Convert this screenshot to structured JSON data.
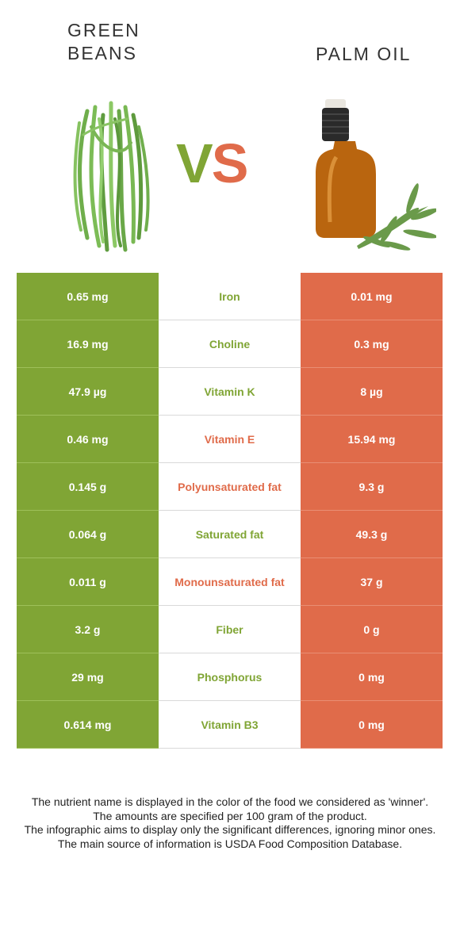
{
  "foods": {
    "left": {
      "name": "GREEN\nBEANS",
      "color": "#80a535",
      "image_icon": "green-beans-image"
    },
    "right": {
      "name": "PALM OIL",
      "color": "#e06b4a",
      "image_icon": "palm-oil-bottle-image"
    }
  },
  "vs": {
    "v": "V",
    "s": "S"
  },
  "rows": [
    {
      "nutrient": "Iron",
      "left": "0.65 mg",
      "right": "0.01 mg",
      "winner": "left"
    },
    {
      "nutrient": "Choline",
      "left": "16.9 mg",
      "right": "0.3 mg",
      "winner": "left"
    },
    {
      "nutrient": "Vitamin K",
      "left": "47.9 µg",
      "right": "8 µg",
      "winner": "left"
    },
    {
      "nutrient": "Vitamin E",
      "left": "0.46 mg",
      "right": "15.94 mg",
      "winner": "right"
    },
    {
      "nutrient": "Polyunsaturated fat",
      "left": "0.145 g",
      "right": "9.3 g",
      "winner": "right"
    },
    {
      "nutrient": "Saturated fat",
      "left": "0.064 g",
      "right": "49.3 g",
      "winner": "left"
    },
    {
      "nutrient": "Monounsaturated fat",
      "left": "0.011 g",
      "right": "37 g",
      "winner": "right"
    },
    {
      "nutrient": "Fiber",
      "left": "3.2 g",
      "right": "0 g",
      "winner": "left"
    },
    {
      "nutrient": "Phosphorus",
      "left": "29 mg",
      "right": "0 mg",
      "winner": "left"
    },
    {
      "nutrient": "Vitamin B3",
      "left": "0.614 mg",
      "right": "0 mg",
      "winner": "left"
    }
  ],
  "footnotes": [
    "The nutrient name is displayed in the color of the food we considered as 'winner'.",
    "The amounts are specified per 100 gram of the product.",
    "The infographic aims to display only the significant differences, ignoring minor ones.",
    "The main source of information is USDA Food Composition Database."
  ]
}
